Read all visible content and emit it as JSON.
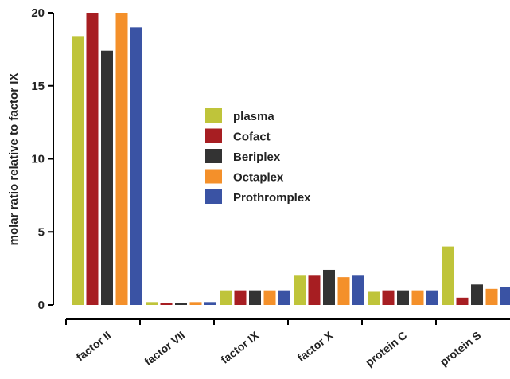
{
  "chart_data": {
    "type": "bar",
    "title": "",
    "xlabel": "",
    "ylabel": "molar ratio relative to factor IX",
    "ylim": [
      0,
      20
    ],
    "yticks": [
      0,
      5,
      10,
      15,
      20
    ],
    "grid": false,
    "legend_position": "center",
    "categories": [
      "factor II",
      "factor VII",
      "factor IX",
      "factor X",
      "protein C",
      "protein S"
    ],
    "series": [
      {
        "name": "plasma",
        "color": "#bfc43a",
        "values": [
          18.4,
          0.2,
          1.0,
          2.0,
          0.9,
          4.0
        ]
      },
      {
        "name": "Cofact",
        "color": "#a71e22",
        "values": [
          20.0,
          0.15,
          1.0,
          2.0,
          1.0,
          0.5
        ]
      },
      {
        "name": "Beriplex",
        "color": "#333333",
        "values": [
          17.4,
          0.15,
          1.0,
          2.4,
          1.0,
          1.4
        ]
      },
      {
        "name": "Octaplex",
        "color": "#f4902a",
        "values": [
          20.0,
          0.2,
          1.0,
          1.9,
          1.0,
          1.1
        ]
      },
      {
        "name": "Prothromplex",
        "color": "#3a53a4",
        "values": [
          19.0,
          0.2,
          1.0,
          2.0,
          1.0,
          1.2
        ]
      }
    ]
  }
}
